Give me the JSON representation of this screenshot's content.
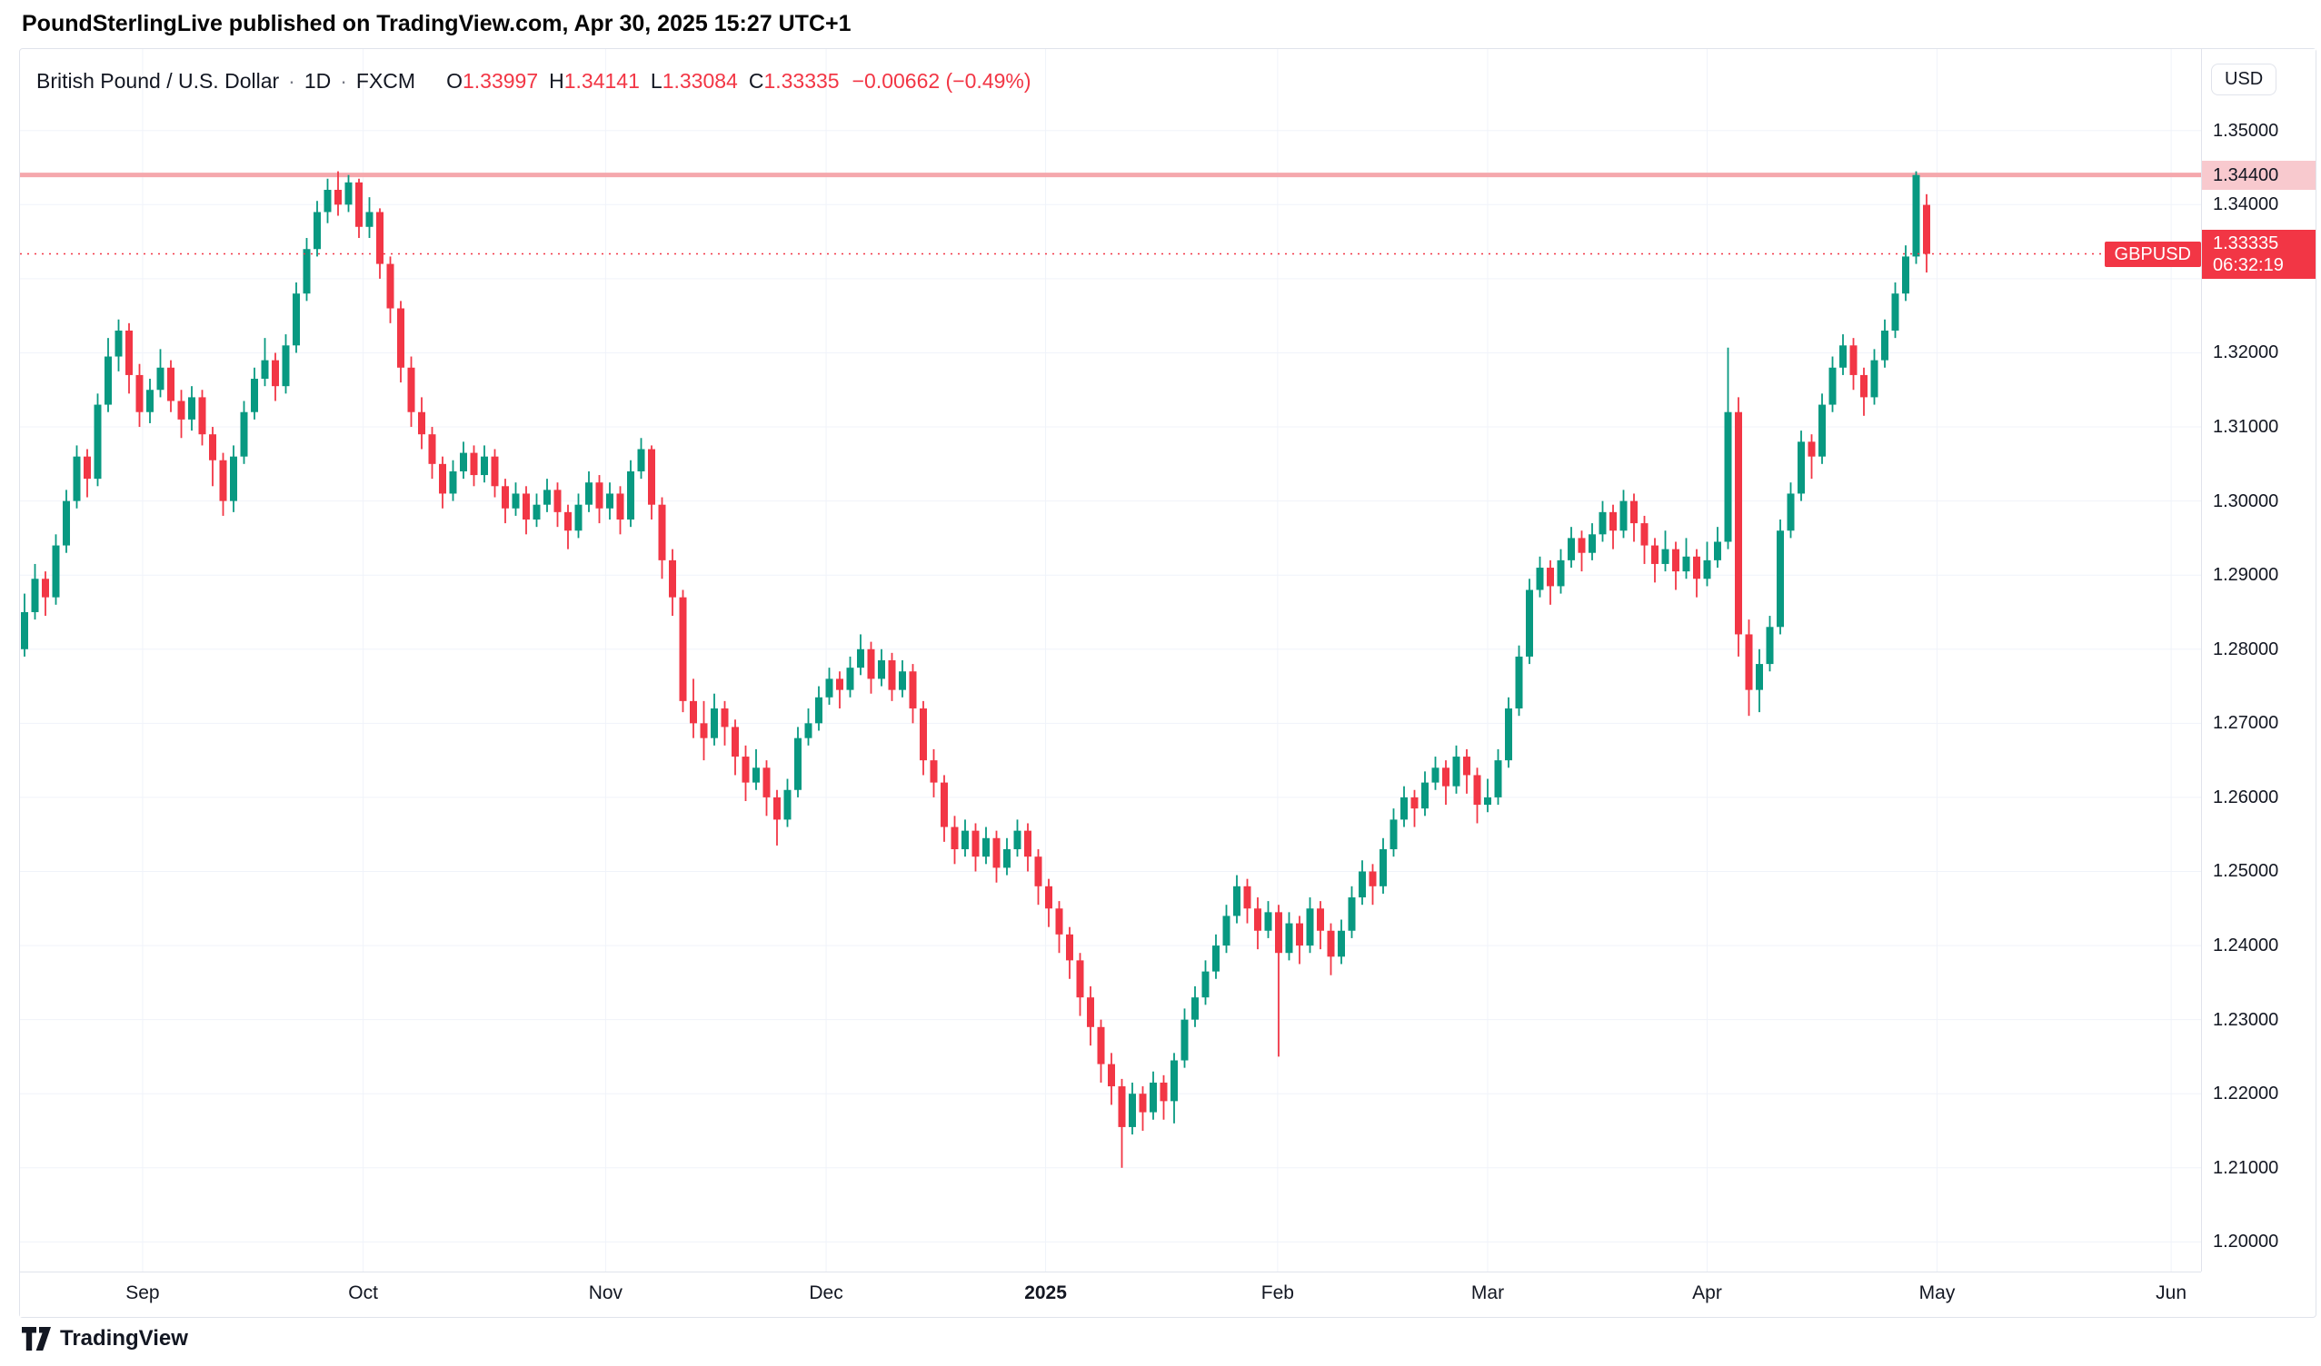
{
  "page": {
    "attribution": "PoundSterlingLive published on TradingView.com, Apr 30, 2025 15:27 UTC+1",
    "footer_brand": "TradingView"
  },
  "header": {
    "symbol_title": "British Pound / U.S. Dollar",
    "sep": "·",
    "timeframe": "1D",
    "exchange": "FXCM",
    "ohlc": {
      "o_label": "O",
      "o": "1.33997",
      "h_label": "H",
      "h": "1.34141",
      "l_label": "L",
      "l": "1.33084",
      "c_label": "C",
      "c": "1.33335",
      "change": "−0.00662 (−0.49%)"
    }
  },
  "price_axis": {
    "currency_button": "USD",
    "ticks": [
      {
        "value": 1.35,
        "label": "1.35000"
      },
      {
        "value": 1.34,
        "label": "1.34000"
      },
      {
        "value": 1.32,
        "label": "1.32000"
      },
      {
        "value": 1.31,
        "label": "1.31000"
      },
      {
        "value": 1.3,
        "label": "1.30000"
      },
      {
        "value": 1.29,
        "label": "1.29000"
      },
      {
        "value": 1.28,
        "label": "1.28000"
      },
      {
        "value": 1.27,
        "label": "1.27000"
      },
      {
        "value": 1.26,
        "label": "1.26000"
      },
      {
        "value": 1.25,
        "label": "1.25000"
      },
      {
        "value": 1.24,
        "label": "1.24000"
      },
      {
        "value": 1.23,
        "label": "1.23000"
      },
      {
        "value": 1.22,
        "label": "1.22000"
      },
      {
        "value": 1.21,
        "label": "1.21000"
      },
      {
        "value": 1.2,
        "label": "1.20000"
      }
    ],
    "level_badge": {
      "label": "1.34400",
      "value": 1.344
    },
    "price_badge": {
      "symbol": "GBPUSD",
      "price_label": "1.33335",
      "value": 1.33335,
      "countdown": "06:32:19"
    }
  },
  "time_axis": {
    "labels": [
      {
        "text": "Sep",
        "index": 11.3
      },
      {
        "text": "Oct",
        "index": 32.4
      },
      {
        "text": "Nov",
        "index": 55.6
      },
      {
        "text": "Dec",
        "index": 76.7
      },
      {
        "text": "2025",
        "index": 97.7,
        "bold": true
      },
      {
        "text": "Feb",
        "index": 119.9
      },
      {
        "text": "Mar",
        "index": 140
      },
      {
        "text": "Apr",
        "index": 161
      },
      {
        "text": "May",
        "index": 183
      },
      {
        "text": "Jun",
        "index": 205.4
      }
    ]
  },
  "colors": {
    "up": "#089981",
    "down": "#f23645",
    "level_line": "#f5a8ad",
    "level_badge_bg": "#f8c9ce",
    "price_badge_bg": "#f23645",
    "grid": "#f0f3fa",
    "axis_border": "#e0e3eb",
    "text_dark": "#131722"
  },
  "chart_data": {
    "type": "candlestick",
    "symbol": "GBPUSD",
    "exchange": "FXCM",
    "interval": "1D",
    "title": "British Pound / U.S. Dollar",
    "ylim": [
      1.196,
      1.361
    ],
    "level_line": 1.344,
    "last_price": 1.33335,
    "bar_spacing": 11.5,
    "grid_prices": [
      1.2,
      1.21,
      1.22,
      1.23,
      1.24,
      1.25,
      1.26,
      1.27,
      1.28,
      1.29,
      1.3,
      1.31,
      1.32,
      1.33,
      1.34,
      1.35
    ],
    "candles": [
      [
        1.28,
        1.2875,
        1.279,
        1.285
      ],
      [
        1.285,
        1.2915,
        1.284,
        1.2895
      ],
      [
        1.2895,
        1.2905,
        1.2845,
        1.287
      ],
      [
        1.287,
        1.2955,
        1.286,
        1.294
      ],
      [
        1.294,
        1.3015,
        1.293,
        1.3
      ],
      [
        1.3,
        1.3075,
        1.299,
        1.306
      ],
      [
        1.306,
        1.307,
        1.3005,
        1.303
      ],
      [
        1.303,
        1.3145,
        1.302,
        1.313
      ],
      [
        1.313,
        1.322,
        1.312,
        1.3195
      ],
      [
        1.3195,
        1.3245,
        1.3175,
        1.323
      ],
      [
        1.323,
        1.324,
        1.3145,
        1.317
      ],
      [
        1.317,
        1.3185,
        1.31,
        1.312
      ],
      [
        1.312,
        1.3165,
        1.3105,
        1.315
      ],
      [
        1.315,
        1.3205,
        1.314,
        1.318
      ],
      [
        1.318,
        1.319,
        1.312,
        1.3135
      ],
      [
        1.3135,
        1.315,
        1.3085,
        1.311
      ],
      [
        1.311,
        1.3155,
        1.3095,
        1.314
      ],
      [
        1.314,
        1.315,
        1.3075,
        1.309
      ],
      [
        1.309,
        1.31,
        1.302,
        1.3055
      ],
      [
        1.3055,
        1.3065,
        1.298,
        1.3
      ],
      [
        1.3,
        1.3075,
        1.2985,
        1.306
      ],
      [
        1.306,
        1.3135,
        1.305,
        1.312
      ],
      [
        1.312,
        1.318,
        1.311,
        1.3165
      ],
      [
        1.3165,
        1.322,
        1.3155,
        1.319
      ],
      [
        1.319,
        1.32,
        1.3135,
        1.3155
      ],
      [
        1.3155,
        1.3225,
        1.3145,
        1.321
      ],
      [
        1.321,
        1.3295,
        1.32,
        1.328
      ],
      [
        1.328,
        1.3355,
        1.327,
        1.334
      ],
      [
        1.334,
        1.3405,
        1.333,
        1.339
      ],
      [
        1.339,
        1.3435,
        1.3375,
        1.342
      ],
      [
        1.342,
        1.3445,
        1.3385,
        1.34
      ],
      [
        1.34,
        1.344,
        1.339,
        1.343
      ],
      [
        1.343,
        1.3435,
        1.3355,
        1.337
      ],
      [
        1.337,
        1.341,
        1.3355,
        1.339
      ],
      [
        1.339,
        1.3395,
        1.33,
        1.332
      ],
      [
        1.332,
        1.333,
        1.324,
        1.326
      ],
      [
        1.326,
        1.327,
        1.316,
        1.318
      ],
      [
        1.318,
        1.3195,
        1.31,
        1.312
      ],
      [
        1.312,
        1.314,
        1.307,
        1.309
      ],
      [
        1.309,
        1.31,
        1.303,
        1.305
      ],
      [
        1.305,
        1.306,
        1.299,
        1.301
      ],
      [
        1.301,
        1.3055,
        1.3,
        1.304
      ],
      [
        1.304,
        1.308,
        1.303,
        1.3065
      ],
      [
        1.3065,
        1.3075,
        1.302,
        1.3035
      ],
      [
        1.3035,
        1.3075,
        1.3025,
        1.306
      ],
      [
        1.306,
        1.307,
        1.3005,
        1.302
      ],
      [
        1.302,
        1.303,
        1.297,
        1.299
      ],
      [
        1.299,
        1.3025,
        1.298,
        1.301
      ],
      [
        1.301,
        1.302,
        1.2955,
        1.2975
      ],
      [
        1.2975,
        1.301,
        1.2965,
        1.2995
      ],
      [
        1.2995,
        1.303,
        1.2985,
        1.3015
      ],
      [
        1.3015,
        1.3025,
        1.2965,
        1.2985
      ],
      [
        1.2985,
        1.2995,
        1.2935,
        1.296
      ],
      [
        1.296,
        1.301,
        1.295,
        1.2995
      ],
      [
        1.2995,
        1.304,
        1.2985,
        1.3025
      ],
      [
        1.3025,
        1.3035,
        1.297,
        1.299
      ],
      [
        1.299,
        1.3025,
        1.2975,
        1.301
      ],
      [
        1.301,
        1.302,
        1.2955,
        1.2975
      ],
      [
        1.2975,
        1.3055,
        1.2965,
        1.304
      ],
      [
        1.304,
        1.3085,
        1.303,
        1.307
      ],
      [
        1.307,
        1.3075,
        1.2975,
        1.2995
      ],
      [
        1.2995,
        1.3005,
        1.2895,
        1.292
      ],
      [
        1.292,
        1.2935,
        1.2845,
        1.287
      ],
      [
        1.287,
        1.288,
        1.2715,
        1.273
      ],
      [
        1.273,
        1.276,
        1.268,
        1.27
      ],
      [
        1.27,
        1.273,
        1.265,
        1.268
      ],
      [
        1.268,
        1.274,
        1.267,
        1.272
      ],
      [
        1.272,
        1.273,
        1.267,
        1.2695
      ],
      [
        1.2695,
        1.2705,
        1.263,
        1.2655
      ],
      [
        1.2655,
        1.267,
        1.2595,
        1.262
      ],
      [
        1.262,
        1.2665,
        1.261,
        1.264
      ],
      [
        1.264,
        1.265,
        1.2575,
        1.26
      ],
      [
        1.26,
        1.261,
        1.2535,
        1.257
      ],
      [
        1.257,
        1.2625,
        1.256,
        1.261
      ],
      [
        1.261,
        1.2695,
        1.26,
        1.268
      ],
      [
        1.268,
        1.272,
        1.267,
        1.27
      ],
      [
        1.27,
        1.275,
        1.269,
        1.2735
      ],
      [
        1.2735,
        1.2775,
        1.2725,
        1.276
      ],
      [
        1.276,
        1.277,
        1.272,
        1.2745
      ],
      [
        1.2745,
        1.279,
        1.2735,
        1.2775
      ],
      [
        1.2775,
        1.282,
        1.2765,
        1.28
      ],
      [
        1.28,
        1.281,
        1.274,
        1.276
      ],
      [
        1.276,
        1.28,
        1.275,
        1.2785
      ],
      [
        1.2785,
        1.2795,
        1.273,
        1.2745
      ],
      [
        1.2745,
        1.2785,
        1.2735,
        1.277
      ],
      [
        1.277,
        1.278,
        1.27,
        1.272
      ],
      [
        1.272,
        1.273,
        1.263,
        1.265
      ],
      [
        1.265,
        1.2665,
        1.26,
        1.262
      ],
      [
        1.262,
        1.263,
        1.254,
        1.256
      ],
      [
        1.256,
        1.2575,
        1.251,
        1.253
      ],
      [
        1.253,
        1.257,
        1.252,
        1.2555
      ],
      [
        1.2555,
        1.2565,
        1.25,
        1.252
      ],
      [
        1.252,
        1.256,
        1.251,
        1.2545
      ],
      [
        1.2545,
        1.2555,
        1.2485,
        1.2505
      ],
      [
        1.2505,
        1.2545,
        1.2495,
        1.253
      ],
      [
        1.253,
        1.257,
        1.252,
        1.2555
      ],
      [
        1.2555,
        1.2565,
        1.25,
        1.252
      ],
      [
        1.252,
        1.253,
        1.2455,
        1.248
      ],
      [
        1.248,
        1.249,
        1.2425,
        1.245
      ],
      [
        1.245,
        1.246,
        1.239,
        1.2415
      ],
      [
        1.2415,
        1.2425,
        1.2355,
        1.238
      ],
      [
        1.238,
        1.239,
        1.2305,
        1.233
      ],
      [
        1.233,
        1.2345,
        1.2265,
        1.229
      ],
      [
        1.229,
        1.23,
        1.2215,
        1.224
      ],
      [
        1.224,
        1.2255,
        1.2185,
        1.221
      ],
      [
        1.221,
        1.222,
        1.21,
        1.2155
      ],
      [
        1.2155,
        1.2215,
        1.2145,
        1.22
      ],
      [
        1.22,
        1.221,
        1.215,
        1.2175
      ],
      [
        1.2175,
        1.223,
        1.2165,
        1.2215
      ],
      [
        1.2215,
        1.2225,
        1.2165,
        1.219
      ],
      [
        1.219,
        1.2255,
        1.216,
        1.2245
      ],
      [
        1.2245,
        1.2315,
        1.2235,
        1.23
      ],
      [
        1.23,
        1.2345,
        1.229,
        1.233
      ],
      [
        1.233,
        1.238,
        1.232,
        1.2365
      ],
      [
        1.2365,
        1.2415,
        1.2355,
        1.24
      ],
      [
        1.24,
        1.2455,
        1.239,
        1.244
      ],
      [
        1.244,
        1.2495,
        1.243,
        1.248
      ],
      [
        1.248,
        1.249,
        1.243,
        1.245
      ],
      [
        1.245,
        1.2465,
        1.2395,
        1.242
      ],
      [
        1.242,
        1.246,
        1.241,
        1.2445
      ],
      [
        1.2445,
        1.2455,
        1.225,
        1.239
      ],
      [
        1.239,
        1.2445,
        1.238,
        1.243
      ],
      [
        1.243,
        1.244,
        1.2375,
        1.24
      ],
      [
        1.24,
        1.2465,
        1.239,
        1.245
      ],
      [
        1.245,
        1.246,
        1.2395,
        1.242
      ],
      [
        1.242,
        1.243,
        1.236,
        1.2385
      ],
      [
        1.2385,
        1.2435,
        1.2375,
        1.242
      ],
      [
        1.242,
        1.248,
        1.241,
        1.2465
      ],
      [
        1.2465,
        1.2515,
        1.2455,
        1.25
      ],
      [
        1.25,
        1.251,
        1.2455,
        1.248
      ],
      [
        1.248,
        1.2545,
        1.247,
        1.253
      ],
      [
        1.253,
        1.2585,
        1.252,
        1.257
      ],
      [
        1.257,
        1.2615,
        1.256,
        1.26
      ],
      [
        1.26,
        1.261,
        1.256,
        1.2585
      ],
      [
        1.2585,
        1.2635,
        1.2575,
        1.262
      ],
      [
        1.262,
        1.2655,
        1.261,
        1.264
      ],
      [
        1.264,
        1.265,
        1.259,
        1.2615
      ],
      [
        1.2615,
        1.267,
        1.2605,
        1.2655
      ],
      [
        1.2655,
        1.2665,
        1.2605,
        1.263
      ],
      [
        1.263,
        1.264,
        1.2565,
        1.259
      ],
      [
        1.259,
        1.2625,
        1.258,
        1.26
      ],
      [
        1.26,
        1.2665,
        1.259,
        1.265
      ],
      [
        1.265,
        1.2735,
        1.264,
        1.272
      ],
      [
        1.272,
        1.2805,
        1.271,
        1.279
      ],
      [
        1.279,
        1.2895,
        1.278,
        1.288
      ],
      [
        1.288,
        1.2925,
        1.287,
        1.291
      ],
      [
        1.291,
        1.292,
        1.286,
        1.2885
      ],
      [
        1.2885,
        1.2935,
        1.2875,
        1.292
      ],
      [
        1.292,
        1.2965,
        1.291,
        1.295
      ],
      [
        1.295,
        1.296,
        1.2905,
        1.293
      ],
      [
        1.293,
        1.297,
        1.292,
        1.2955
      ],
      [
        1.2955,
        1.3,
        1.2945,
        1.2985
      ],
      [
        1.2985,
        1.2995,
        1.2935,
        1.296
      ],
      [
        1.296,
        1.3015,
        1.295,
        1.3
      ],
      [
        1.3,
        1.301,
        1.2945,
        1.297
      ],
      [
        1.297,
        1.298,
        1.2915,
        1.294
      ],
      [
        1.294,
        1.295,
        1.289,
        1.2915
      ],
      [
        1.2915,
        1.296,
        1.2905,
        1.2935
      ],
      [
        1.2935,
        1.2945,
        1.288,
        1.2905
      ],
      [
        1.2905,
        1.295,
        1.2895,
        1.2925
      ],
      [
        1.2925,
        1.2935,
        1.287,
        1.2895
      ],
      [
        1.2895,
        1.2945,
        1.2885,
        1.292
      ],
      [
        1.292,
        1.2965,
        1.291,
        1.2945
      ],
      [
        1.2945,
        1.3207,
        1.2935,
        1.312
      ],
      [
        1.312,
        1.314,
        1.279,
        1.282
      ],
      [
        1.282,
        1.284,
        1.271,
        1.2745
      ],
      [
        1.2745,
        1.28,
        1.2715,
        1.278
      ],
      [
        1.278,
        1.2845,
        1.277,
        1.283
      ],
      [
        1.283,
        1.2975,
        1.282,
        1.296
      ],
      [
        1.296,
        1.3025,
        1.295,
        1.301
      ],
      [
        1.301,
        1.3095,
        1.3,
        1.308
      ],
      [
        1.308,
        1.309,
        1.303,
        1.306
      ],
      [
        1.306,
        1.3145,
        1.305,
        1.313
      ],
      [
        1.313,
        1.3195,
        1.312,
        1.318
      ],
      [
        1.318,
        1.3225,
        1.317,
        1.321
      ],
      [
        1.321,
        1.322,
        1.315,
        1.317
      ],
      [
        1.317,
        1.318,
        1.3115,
        1.314
      ],
      [
        1.314,
        1.3205,
        1.313,
        1.319
      ],
      [
        1.319,
        1.3245,
        1.318,
        1.323
      ],
      [
        1.323,
        1.3295,
        1.322,
        1.328
      ],
      [
        1.328,
        1.3345,
        1.327,
        1.333
      ],
      [
        1.333,
        1.3445,
        1.332,
        1.344
      ],
      [
        1.33997,
        1.34141,
        1.33084,
        1.33335
      ]
    ]
  }
}
